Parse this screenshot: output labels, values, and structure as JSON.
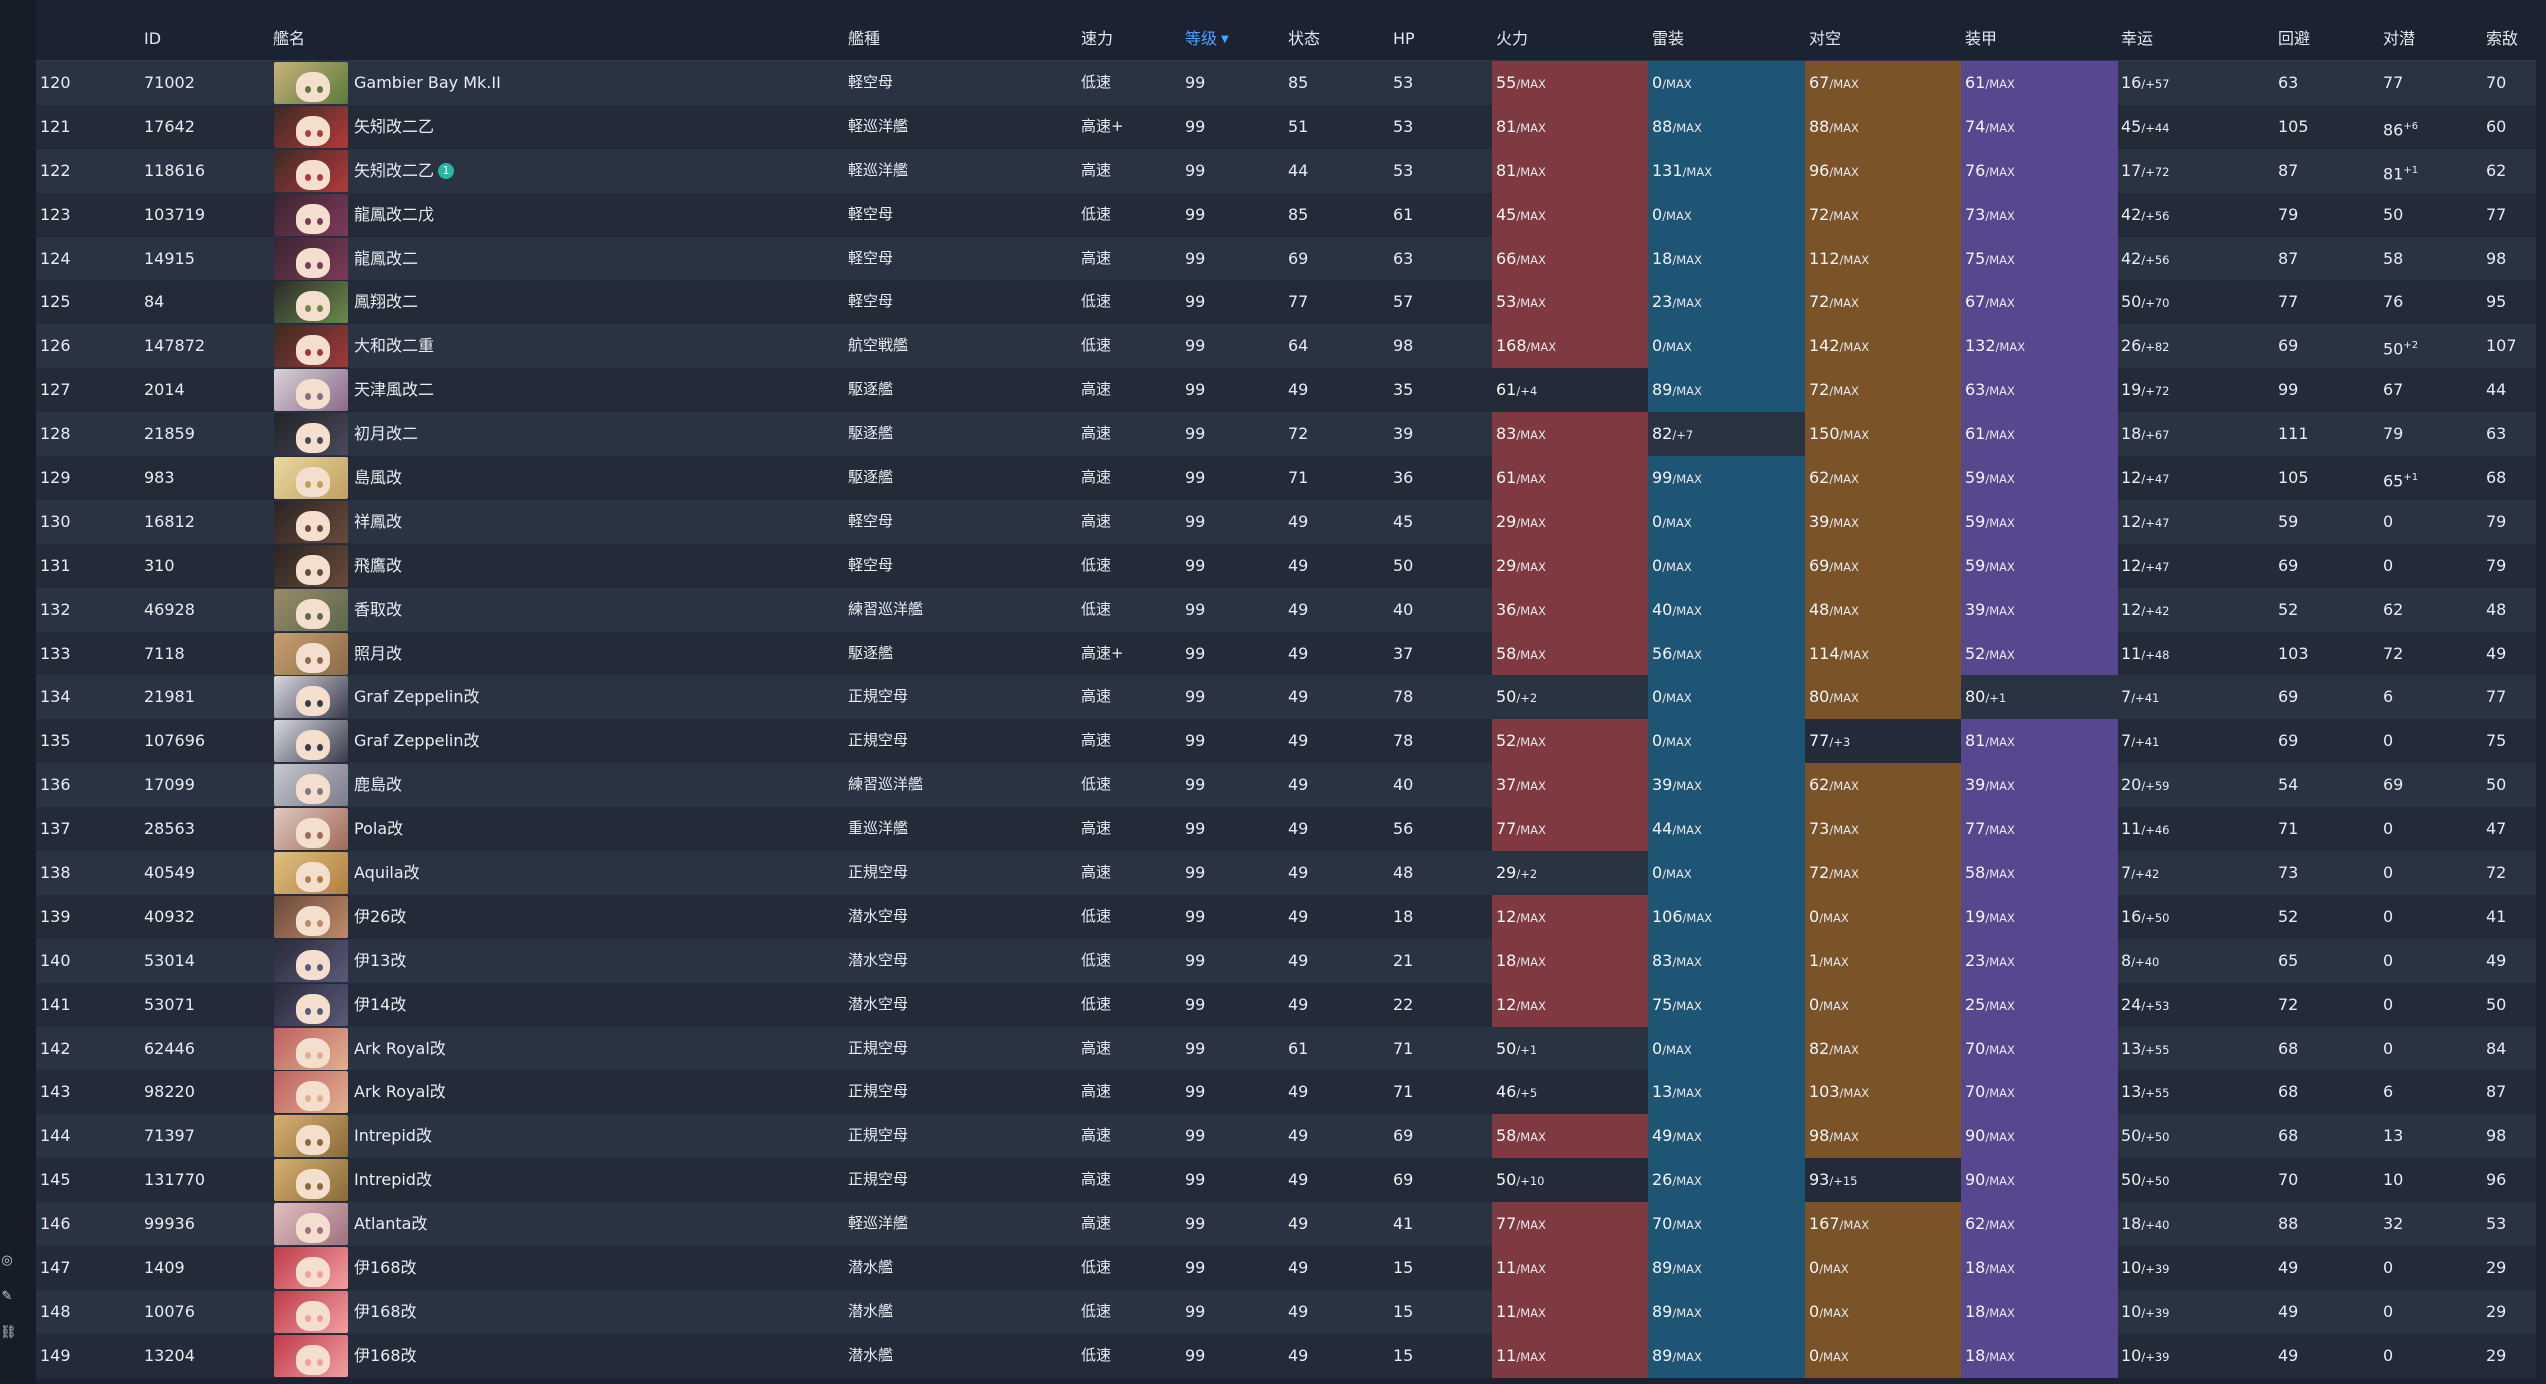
{
  "headers": {
    "id": "ID",
    "name": "艦名",
    "type": "艦種",
    "speed": "速力",
    "level": "等级",
    "cond": "状态",
    "hp": "HP",
    "fp": "火力",
    "tp": "雷装",
    "aa": "对空",
    "ar": "装甲",
    "luck": "幸运",
    "ev": "回避",
    "asw": "对潜",
    "los": "索敌"
  },
  "sort": {
    "column": "level",
    "direction": "desc",
    "icon": "sort-desc-icon"
  },
  "colors": {
    "background": "#1b2231",
    "row_odd": "#2a3342",
    "row_even": "#232b39",
    "firepower_max": "#7f3a41",
    "torpedo_max": "#1f5574",
    "antiair_max": "#7a5329",
    "armor_max": "#58468f",
    "sort_accent": "#4aa3ff"
  },
  "rows": [
    {
      "idx": "120",
      "id": "71002",
      "name": "Gambier Bay Mk.II",
      "type": "軽空母",
      "speed": "低速",
      "lv": "99",
      "cond": "85",
      "hp": "53",
      "fp": "55",
      "fps": "/MAX",
      "tp": "0",
      "tps": "/MAX",
      "aa": "67",
      "aas": "/MAX",
      "ar": "61",
      "ars": "/MAX",
      "luck": "16",
      "lucks": "/+57",
      "ev": "63",
      "asw": "77",
      "asws": "",
      "los": "70",
      "avatar": [
        "#c9b27a",
        "#5a7a3a"
      ]
    },
    {
      "idx": "121",
      "id": "17642",
      "name": "矢矧改二乙",
      "type": "軽巡洋艦",
      "speed": "高速+",
      "lv": "99",
      "cond": "51",
      "hp": "53",
      "fp": "81",
      "fps": "/MAX",
      "tp": "88",
      "tps": "/MAX",
      "aa": "88",
      "aas": "/MAX",
      "ar": "74",
      "ars": "/MAX",
      "luck": "45",
      "lucks": "/+44",
      "ev": "105",
      "asw": "86",
      "asws": "+6",
      "los": "60",
      "avatar": [
        "#3b2a26",
        "#b23a3a"
      ]
    },
    {
      "idx": "122",
      "id": "118616",
      "name": "矢矧改二乙",
      "mark": "1",
      "type": "軽巡洋艦",
      "speed": "高速",
      "lv": "99",
      "cond": "44",
      "hp": "53",
      "fp": "81",
      "fps": "/MAX",
      "tp": "131",
      "tps": "/MAX",
      "aa": "96",
      "aas": "/MAX",
      "ar": "76",
      "ars": "/MAX",
      "luck": "17",
      "lucks": "/+72",
      "ev": "87",
      "asw": "81",
      "asws": "+1",
      "los": "62",
      "avatar": [
        "#3b2a26",
        "#b23a3a"
      ]
    },
    {
      "idx": "123",
      "id": "103719",
      "name": "龍鳳改二戊",
      "type": "軽空母",
      "speed": "低速",
      "lv": "99",
      "cond": "85",
      "hp": "61",
      "fp": "45",
      "fps": "/MAX",
      "tp": "0",
      "tps": "/MAX",
      "aa": "72",
      "aas": "/MAX",
      "ar": "73",
      "ars": "/MAX",
      "luck": "42",
      "lucks": "/+56",
      "ev": "79",
      "asw": "50",
      "asws": "",
      "los": "77",
      "avatar": [
        "#3a2430",
        "#7d3a5a"
      ]
    },
    {
      "idx": "124",
      "id": "14915",
      "name": "龍鳳改二",
      "type": "軽空母",
      "speed": "高速",
      "lv": "99",
      "cond": "69",
      "hp": "63",
      "fp": "66",
      "fps": "/MAX",
      "tp": "18",
      "tps": "/MAX",
      "aa": "112",
      "aas": "/MAX",
      "ar": "75",
      "ars": "/MAX",
      "luck": "42",
      "lucks": "/+56",
      "ev": "87",
      "asw": "58",
      "asws": "",
      "los": "98",
      "avatar": [
        "#3a2430",
        "#7d3a5a"
      ]
    },
    {
      "idx": "125",
      "id": "84",
      "name": "鳳翔改二",
      "type": "軽空母",
      "speed": "低速",
      "lv": "99",
      "cond": "77",
      "hp": "57",
      "fp": "53",
      "fps": "/MAX",
      "tp": "23",
      "tps": "/MAX",
      "aa": "72",
      "aas": "/MAX",
      "ar": "67",
      "ars": "/MAX",
      "luck": "50",
      "lucks": "/+70",
      "ev": "77",
      "asw": "76",
      "asws": "",
      "los": "95",
      "avatar": [
        "#2a2a2a",
        "#6a8a4a"
      ]
    },
    {
      "idx": "126",
      "id": "147872",
      "name": "大和改二重",
      "type": "航空戦艦",
      "speed": "低速",
      "lv": "99",
      "cond": "64",
      "hp": "98",
      "fp": "168",
      "fps": "/MAX",
      "tp": "0",
      "tps": "/MAX",
      "aa": "142",
      "aas": "/MAX",
      "ar": "132",
      "ars": "/MAX",
      "luck": "26",
      "lucks": "/+82",
      "ev": "69",
      "asw": "50",
      "asws": "+2",
      "los": "107",
      "avatar": [
        "#3a2a22",
        "#a03a3a"
      ]
    },
    {
      "idx": "127",
      "id": "2014",
      "name": "天津風改二",
      "type": "駆逐艦",
      "speed": "高速",
      "lv": "99",
      "cond": "49",
      "hp": "35",
      "fp": "61",
      "fps": "/+4",
      "tp": "89",
      "tps": "/MAX",
      "aa": "72",
      "aas": "/MAX",
      "ar": "63",
      "ars": "/MAX",
      "luck": "19",
      "lucks": "/+72",
      "ev": "99",
      "asw": "67",
      "asws": "",
      "los": "44",
      "avatar": [
        "#d9d2d8",
        "#8a6a8a"
      ]
    },
    {
      "idx": "128",
      "id": "21859",
      "name": "初月改二",
      "type": "駆逐艦",
      "speed": "高速",
      "lv": "99",
      "cond": "72",
      "hp": "39",
      "fp": "83",
      "fps": "/MAX",
      "tp": "82",
      "tps": "/+7",
      "aa": "150",
      "aas": "/MAX",
      "ar": "61",
      "ars": "/MAX",
      "luck": "18",
      "lucks": "/+67",
      "ev": "111",
      "asw": "79",
      "asws": "",
      "los": "63",
      "avatar": [
        "#222228",
        "#4a4a5a"
      ]
    },
    {
      "idx": "129",
      "id": "983",
      "name": "島風改",
      "type": "駆逐艦",
      "speed": "高速",
      "lv": "99",
      "cond": "71",
      "hp": "36",
      "fp": "61",
      "fps": "/MAX",
      "tp": "99",
      "tps": "/MAX",
      "aa": "62",
      "aas": "/MAX",
      "ar": "59",
      "ars": "/MAX",
      "luck": "12",
      "lucks": "/+47",
      "ev": "105",
      "asw": "65",
      "asws": "+1",
      "los": "68",
      "avatar": [
        "#e8d8a0",
        "#c0a060"
      ]
    },
    {
      "idx": "130",
      "id": "16812",
      "name": "祥鳳改",
      "type": "軽空母",
      "speed": "高速",
      "lv": "99",
      "cond": "49",
      "hp": "45",
      "fp": "29",
      "fps": "/MAX",
      "tp": "0",
      "tps": "/MAX",
      "aa": "39",
      "aas": "/MAX",
      "ar": "59",
      "ars": "/MAX",
      "luck": "12",
      "lucks": "/+47",
      "ev": "59",
      "asw": "0",
      "asws": "",
      "los": "79",
      "avatar": [
        "#2a2424",
        "#6a4a3a"
      ]
    },
    {
      "idx": "131",
      "id": "310",
      "name": "飛鷹改",
      "type": "軽空母",
      "speed": "低速",
      "lv": "99",
      "cond": "49",
      "hp": "50",
      "fp": "29",
      "fps": "/MAX",
      "tp": "0",
      "tps": "/MAX",
      "aa": "69",
      "aas": "/MAX",
      "ar": "59",
      "ars": "/MAX",
      "luck": "12",
      "lucks": "/+47",
      "ev": "69",
      "asw": "0",
      "asws": "",
      "los": "79",
      "avatar": [
        "#2a2424",
        "#6a4a3a"
      ]
    },
    {
      "idx": "132",
      "id": "46928",
      "name": "香取改",
      "type": "練習巡洋艦",
      "speed": "低速",
      "lv": "99",
      "cond": "49",
      "hp": "40",
      "fp": "36",
      "fps": "/MAX",
      "tp": "40",
      "tps": "/MAX",
      "aa": "48",
      "aas": "/MAX",
      "ar": "39",
      "ars": "/MAX",
      "luck": "12",
      "lucks": "/+42",
      "ev": "52",
      "asw": "62",
      "asws": "",
      "los": "48",
      "avatar": [
        "#9a8a6a",
        "#5a6a4a"
      ]
    },
    {
      "idx": "133",
      "id": "7118",
      "name": "照月改",
      "type": "駆逐艦",
      "speed": "高速+",
      "lv": "99",
      "cond": "49",
      "hp": "37",
      "fp": "58",
      "fps": "/MAX",
      "tp": "56",
      "tps": "/MAX",
      "aa": "114",
      "aas": "/MAX",
      "ar": "52",
      "ars": "/MAX",
      "luck": "11",
      "lucks": "/+48",
      "ev": "103",
      "asw": "72",
      "asws": "",
      "los": "49",
      "avatar": [
        "#c8a070",
        "#8a6a4a"
      ]
    },
    {
      "idx": "134",
      "id": "21981",
      "name": "Graf Zeppelin改",
      "type": "正規空母",
      "speed": "高速",
      "lv": "99",
      "cond": "49",
      "hp": "78",
      "fp": "50",
      "fps": "/+2",
      "tp": "0",
      "tps": "/MAX",
      "aa": "80",
      "aas": "/MAX",
      "ar": "80",
      "ars": "/+1",
      "luck": "7",
      "lucks": "/+41",
      "ev": "69",
      "asw": "6",
      "asws": "",
      "los": "77",
      "avatar": [
        "#d8d8e0",
        "#3a3a4a"
      ]
    },
    {
      "idx": "135",
      "id": "107696",
      "name": "Graf Zeppelin改",
      "type": "正規空母",
      "speed": "高速",
      "lv": "99",
      "cond": "49",
      "hp": "78",
      "fp": "52",
      "fps": "/MAX",
      "tp": "0",
      "tps": "/MAX",
      "aa": "77",
      "aas": "/+3",
      "ar": "81",
      "ars": "/MAX",
      "luck": "7",
      "lucks": "/+41",
      "ev": "69",
      "asw": "0",
      "asws": "",
      "los": "75",
      "avatar": [
        "#d8d8e0",
        "#3a3a4a"
      ]
    },
    {
      "idx": "136",
      "id": "17099",
      "name": "鹿島改",
      "type": "練習巡洋艦",
      "speed": "低速",
      "lv": "99",
      "cond": "49",
      "hp": "40",
      "fp": "37",
      "fps": "/MAX",
      "tp": "39",
      "tps": "/MAX",
      "aa": "62",
      "aas": "/MAX",
      "ar": "39",
      "ars": "/MAX",
      "luck": "20",
      "lucks": "/+59",
      "ev": "54",
      "asw": "69",
      "asws": "",
      "los": "50",
      "avatar": [
        "#c8c8d0",
        "#7a7a8a"
      ]
    },
    {
      "idx": "137",
      "id": "28563",
      "name": "Pola改",
      "type": "重巡洋艦",
      "speed": "高速",
      "lv": "99",
      "cond": "49",
      "hp": "56",
      "fp": "77",
      "fps": "/MAX",
      "tp": "44",
      "tps": "/MAX",
      "aa": "73",
      "aas": "/MAX",
      "ar": "77",
      "ars": "/MAX",
      "luck": "11",
      "lucks": "/+46",
      "ev": "71",
      "asw": "0",
      "asws": "",
      "los": "47",
      "avatar": [
        "#e0c8c0",
        "#a06a5a"
      ]
    },
    {
      "idx": "138",
      "id": "40549",
      "name": "Aquila改",
      "type": "正規空母",
      "speed": "高速",
      "lv": "99",
      "cond": "49",
      "hp": "48",
      "fp": "29",
      "fps": "/+2",
      "tp": "0",
      "tps": "/MAX",
      "aa": "72",
      "aas": "/MAX",
      "ar": "58",
      "ars": "/MAX",
      "luck": "7",
      "lucks": "/+42",
      "ev": "73",
      "asw": "0",
      "asws": "",
      "los": "72",
      "avatar": [
        "#e0c080",
        "#b08040"
      ]
    },
    {
      "idx": "139",
      "id": "40932",
      "name": "伊26改",
      "type": "潜水空母",
      "speed": "低速",
      "lv": "99",
      "cond": "49",
      "hp": "18",
      "fp": "12",
      "fps": "/MAX",
      "tp": "106",
      "tps": "/MAX",
      "aa": "0",
      "aas": "/MAX",
      "ar": "19",
      "ars": "/MAX",
      "luck": "16",
      "lucks": "/+50",
      "ev": "52",
      "asw": "0",
      "asws": "",
      "los": "41",
      "avatar": [
        "#6a4a3a",
        "#c08a6a"
      ]
    },
    {
      "idx": "140",
      "id": "53014",
      "name": "伊13改",
      "type": "潜水空母",
      "speed": "低速",
      "lv": "99",
      "cond": "49",
      "hp": "21",
      "fp": "18",
      "fps": "/MAX",
      "tp": "83",
      "tps": "/MAX",
      "aa": "1",
      "aas": "/MAX",
      "ar": "23",
      "ars": "/MAX",
      "luck": "8",
      "lucks": "/+40",
      "ev": "65",
      "asw": "0",
      "asws": "",
      "los": "49",
      "avatar": [
        "#2a2a3a",
        "#5a5a7a"
      ]
    },
    {
      "idx": "141",
      "id": "53071",
      "name": "伊14改",
      "type": "潜水空母",
      "speed": "低速",
      "lv": "99",
      "cond": "49",
      "hp": "22",
      "fp": "12",
      "fps": "/MAX",
      "tp": "75",
      "tps": "/MAX",
      "aa": "0",
      "aas": "/MAX",
      "ar": "25",
      "ars": "/MAX",
      "luck": "24",
      "lucks": "/+53",
      "ev": "72",
      "asw": "0",
      "asws": "",
      "los": "50",
      "avatar": [
        "#2a2a3a",
        "#5a5a7a"
      ]
    },
    {
      "idx": "142",
      "id": "62446",
      "name": "Ark Royal改",
      "type": "正規空母",
      "speed": "高速",
      "lv": "99",
      "cond": "61",
      "hp": "71",
      "fp": "50",
      "fps": "/+1",
      "tp": "0",
      "tps": "/MAX",
      "aa": "82",
      "aas": "/MAX",
      "ar": "70",
      "ars": "/MAX",
      "luck": "13",
      "lucks": "/+55",
      "ev": "68",
      "asw": "0",
      "asws": "",
      "los": "84",
      "avatar": [
        "#c06060",
        "#e0b090"
      ]
    },
    {
      "idx": "143",
      "id": "98220",
      "name": "Ark Royal改",
      "type": "正規空母",
      "speed": "高速",
      "lv": "99",
      "cond": "49",
      "hp": "71",
      "fp": "46",
      "fps": "/+5",
      "tp": "13",
      "tps": "/MAX",
      "aa": "103",
      "aas": "/MAX",
      "ar": "70",
      "ars": "/MAX",
      "luck": "13",
      "lucks": "/+55",
      "ev": "68",
      "asw": "6",
      "asws": "",
      "los": "87",
      "avatar": [
        "#c06060",
        "#e0b090"
      ]
    },
    {
      "idx": "144",
      "id": "71397",
      "name": "Intrepid改",
      "type": "正規空母",
      "speed": "高速",
      "lv": "99",
      "cond": "49",
      "hp": "69",
      "fp": "58",
      "fps": "/MAX",
      "tp": "49",
      "tps": "/MAX",
      "aa": "98",
      "aas": "/MAX",
      "ar": "90",
      "ars": "/MAX",
      "luck": "50",
      "lucks": "/+50",
      "ev": "68",
      "asw": "13",
      "asws": "",
      "los": "98",
      "avatar": [
        "#d8b070",
        "#8a6a3a"
      ]
    },
    {
      "idx": "145",
      "id": "131770",
      "name": "Intrepid改",
      "type": "正規空母",
      "speed": "高速",
      "lv": "99",
      "cond": "49",
      "hp": "69",
      "fp": "50",
      "fps": "/+10",
      "tp": "26",
      "tps": "/MAX",
      "aa": "93",
      "aas": "/+15",
      "ar": "90",
      "ars": "/MAX",
      "luck": "50",
      "lucks": "/+50",
      "ev": "70",
      "asw": "10",
      "asws": "",
      "los": "96",
      "avatar": [
        "#d8b070",
        "#8a6a3a"
      ]
    },
    {
      "idx": "146",
      "id": "99936",
      "name": "Atlanta改",
      "type": "軽巡洋艦",
      "speed": "高速",
      "lv": "99",
      "cond": "49",
      "hp": "41",
      "fp": "77",
      "fps": "/MAX",
      "tp": "70",
      "tps": "/MAX",
      "aa": "167",
      "aas": "/MAX",
      "ar": "62",
      "ars": "/MAX",
      "luck": "18",
      "lucks": "/+40",
      "ev": "88",
      "asw": "32",
      "asws": "",
      "los": "53",
      "avatar": [
        "#e0c0c0",
        "#a07080"
      ]
    },
    {
      "idx": "147",
      "id": "1409",
      "name": "伊168改",
      "type": "潜水艦",
      "speed": "低速",
      "lv": "99",
      "cond": "49",
      "hp": "15",
      "fp": "11",
      "fps": "/MAX",
      "tp": "89",
      "tps": "/MAX",
      "aa": "0",
      "aas": "/MAX",
      "ar": "18",
      "ars": "/MAX",
      "luck": "10",
      "lucks": "/+39",
      "ev": "49",
      "asw": "0",
      "asws": "",
      "los": "29",
      "avatar": [
        "#c03a4a",
        "#f0a0a0"
      ]
    },
    {
      "idx": "148",
      "id": "10076",
      "name": "伊168改",
      "type": "潜水艦",
      "speed": "低速",
      "lv": "99",
      "cond": "49",
      "hp": "15",
      "fp": "11",
      "fps": "/MAX",
      "tp": "89",
      "tps": "/MAX",
      "aa": "0",
      "aas": "/MAX",
      "ar": "18",
      "ars": "/MAX",
      "luck": "10",
      "lucks": "/+39",
      "ev": "49",
      "asw": "0",
      "asws": "",
      "los": "29",
      "avatar": [
        "#c03a4a",
        "#f0a0a0"
      ]
    },
    {
      "idx": "149",
      "id": "13204",
      "name": "伊168改",
      "type": "潜水艦",
      "speed": "低速",
      "lv": "99",
      "cond": "49",
      "hp": "15",
      "fp": "11",
      "fps": "/MAX",
      "tp": "89",
      "tps": "/MAX",
      "aa": "0",
      "aas": "/MAX",
      "ar": "18",
      "ars": "/MAX",
      "luck": "10",
      "lucks": "/+39",
      "ev": "49",
      "asw": "0",
      "asws": "",
      "los": "29",
      "avatar": [
        "#c03a4a",
        "#f0a0a0"
      ]
    }
  ]
}
